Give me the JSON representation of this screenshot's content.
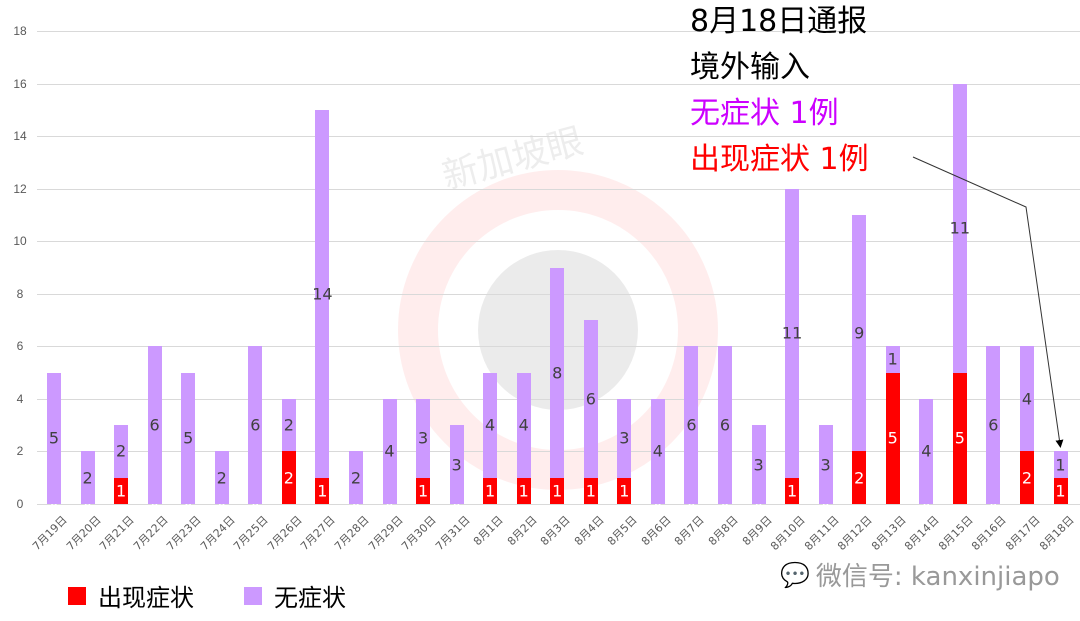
{
  "chart_data": {
    "type": "bar",
    "stacked": true,
    "title": "",
    "xlabel": "",
    "ylabel": "",
    "ylim": [
      0,
      18
    ],
    "yticks": [
      0,
      2,
      4,
      6,
      8,
      10,
      12,
      14,
      16,
      18
    ],
    "grid": true,
    "legend_position": "bottom-left",
    "categories": [
      "7月19日",
      "7月20日",
      "7月21日",
      "7月22日",
      "7月23日",
      "7月24日",
      "7月25日",
      "7月26日",
      "7月27日",
      "7月28日",
      "7月29日",
      "7月30日",
      "7月31日",
      "8月1日",
      "8月2日",
      "8月3日",
      "8月4日",
      "8月5日",
      "8月6日",
      "8月7日",
      "8月8日",
      "8月9日",
      "8月10日",
      "8月11日",
      "8月12日",
      "8月13日",
      "8月14日",
      "8月15日",
      "8月16日",
      "8月17日",
      "8月18日"
    ],
    "series": [
      {
        "name": "出现症状",
        "color": "#ff0000",
        "values": [
          0,
          0,
          1,
          0,
          0,
          0,
          0,
          2,
          1,
          0,
          0,
          1,
          0,
          1,
          1,
          1,
          1,
          1,
          0,
          0,
          0,
          0,
          1,
          0,
          2,
          5,
          0,
          5,
          0,
          2,
          1
        ]
      },
      {
        "name": "无症状",
        "color": "#cc99ff",
        "values": [
          5,
          2,
          2,
          6,
          5,
          2,
          6,
          2,
          14,
          2,
          4,
          3,
          3,
          4,
          4,
          8,
          6,
          3,
          4,
          6,
          6,
          3,
          11,
          3,
          9,
          1,
          4,
          11,
          6,
          4,
          1
        ]
      }
    ],
    "annotations": [
      {
        "text": "8月18日通报",
        "color": "#000000"
      },
      {
        "text": "境外输入",
        "color": "#000000"
      },
      {
        "text": "无症状 1例",
        "color": "#cc00ff"
      },
      {
        "text": "出现症状 1例",
        "color": "#ff0000",
        "arrow_to": "8月18日"
      }
    ]
  },
  "legend": {
    "items": [
      {
        "label": "出现症状",
        "color": "#ff0000"
      },
      {
        "label": "无症状",
        "color": "#cc99ff"
      }
    ]
  },
  "annotation": {
    "line1": "8月18日通报",
    "line2": "境外输入",
    "line3": "无症状 1例",
    "line4": "出现症状 1例"
  },
  "watermark": {
    "text": "微信号: kanxinjiapo",
    "bg_text": "新加坡眼"
  }
}
